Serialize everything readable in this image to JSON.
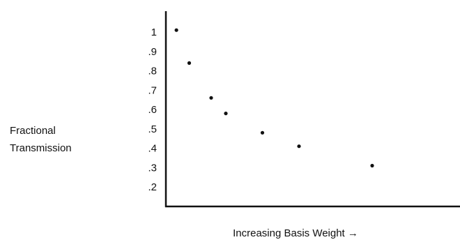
{
  "chart_data": {
    "type": "scatter",
    "title": "",
    "xlabel": "Increasing Basis Weight →",
    "ylabel": [
      "Fractional",
      "Transmission"
    ],
    "yticks": [
      {
        "value": 1.0,
        "label": "1"
      },
      {
        "value": 0.9,
        "label": ".9"
      },
      {
        "value": 0.8,
        "label": ".8"
      },
      {
        "value": 0.7,
        "label": ".7"
      },
      {
        "value": 0.6,
        "label": ".6"
      },
      {
        "value": 0.5,
        "label": ".5"
      },
      {
        "value": 0.4,
        "label": ".4"
      },
      {
        "value": 0.3,
        "label": ".3"
      },
      {
        "value": 0.2,
        "label": ".2"
      }
    ],
    "ylim": [
      0.1,
      1.05
    ],
    "xlim": [
      0,
      8
    ],
    "x_ticks_shown": false,
    "grid": false,
    "legend": "none",
    "points": [
      {
        "x": 0.25,
        "y": 1.01
      },
      {
        "x": 0.6,
        "y": 0.84
      },
      {
        "x": 1.2,
        "y": 0.66
      },
      {
        "x": 1.6,
        "y": 0.58
      },
      {
        "x": 2.6,
        "y": 0.48
      },
      {
        "x": 3.6,
        "y": 0.41
      },
      {
        "x": 5.6,
        "y": 0.31
      }
    ],
    "colors": {
      "ink": "#111111",
      "background": "#ffffff"
    }
  }
}
